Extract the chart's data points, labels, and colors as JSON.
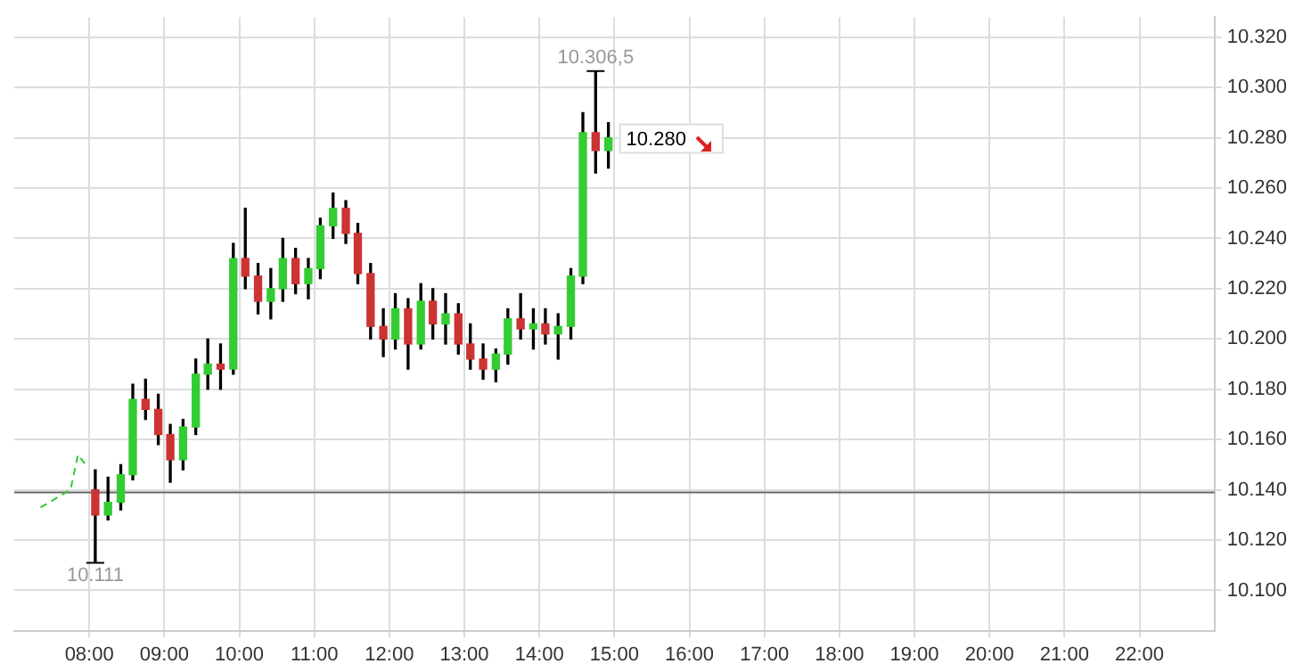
{
  "chart_data": {
    "type": "candlestick",
    "x": [
      8.08,
      8.25,
      8.42,
      8.58,
      8.75,
      8.92,
      9.08,
      9.25,
      9.42,
      9.58,
      9.75,
      9.92,
      10.08,
      10.25,
      10.42,
      10.58,
      10.75,
      10.92,
      11.08,
      11.25,
      11.42,
      11.58,
      11.75,
      11.92,
      12.08,
      12.25,
      12.42,
      12.58,
      12.75,
      12.92,
      13.08,
      13.25,
      13.42,
      13.58,
      13.75,
      13.92,
      14.08,
      14.25,
      14.42,
      14.58,
      14.75,
      14.92
    ],
    "ohlc": [
      [
        10140,
        10148,
        10111,
        10130
      ],
      [
        10130,
        10145,
        10128,
        10135
      ],
      [
        10135,
        10150,
        10132,
        10146
      ],
      [
        10146,
        10182,
        10144,
        10176
      ],
      [
        10176,
        10184,
        10168,
        10172
      ],
      [
        10172,
        10178,
        10158,
        10162
      ],
      [
        10162,
        10166,
        10143,
        10152
      ],
      [
        10152,
        10168,
        10148,
        10165
      ],
      [
        10165,
        10192,
        10162,
        10186
      ],
      [
        10186,
        10200,
        10180,
        10190
      ],
      [
        10190,
        10198,
        10180,
        10188
      ],
      [
        10188,
        10238,
        10186,
        10232
      ],
      [
        10232,
        10252,
        10220,
        10225
      ],
      [
        10225,
        10230,
        10210,
        10215
      ],
      [
        10215,
        10228,
        10208,
        10220
      ],
      [
        10220,
        10240,
        10215,
        10232
      ],
      [
        10232,
        10236,
        10218,
        10222
      ],
      [
        10222,
        10232,
        10216,
        10228
      ],
      [
        10228,
        10248,
        10224,
        10245
      ],
      [
        10245,
        10258,
        10240,
        10252
      ],
      [
        10252,
        10255,
        10238,
        10242
      ],
      [
        10242,
        10246,
        10222,
        10226
      ],
      [
        10226,
        10230,
        10200,
        10205
      ],
      [
        10205,
        10212,
        10193,
        10200
      ],
      [
        10200,
        10218,
        10196,
        10212
      ],
      [
        10212,
        10216,
        10188,
        10198
      ],
      [
        10198,
        10222,
        10196,
        10215
      ],
      [
        10215,
        10220,
        10200,
        10206
      ],
      [
        10206,
        10218,
        10198,
        10210
      ],
      [
        10210,
        10214,
        10194,
        10198
      ],
      [
        10198,
        10206,
        10188,
        10192
      ],
      [
        10192,
        10198,
        10184,
        10188
      ],
      [
        10188,
        10196,
        10183,
        10194
      ],
      [
        10194,
        10212,
        10190,
        10208
      ],
      [
        10208,
        10218,
        10200,
        10204
      ],
      [
        10204,
        10212,
        10196,
        10206
      ],
      [
        10206,
        10212,
        10198,
        10202
      ],
      [
        10202,
        10210,
        10192,
        10205
      ],
      [
        10205,
        10228,
        10200,
        10225
      ],
      [
        10225,
        10290,
        10222,
        10282
      ],
      [
        10282,
        10306.5,
        10266,
        10275
      ],
      [
        10275,
        10286,
        10268,
        10280
      ]
    ],
    "colors": [
      "#cc3333",
      "#33cc33",
      "#33cc33",
      "#33cc33",
      "#cc3333",
      "#cc3333",
      "#cc3333",
      "#33cc33",
      "#33cc33",
      "#33cc33",
      "#cc3333",
      "#33cc33",
      "#cc3333",
      "#cc3333",
      "#33cc33",
      "#33cc33",
      "#cc3333",
      "#33cc33",
      "#33cc33",
      "#33cc33",
      "#cc3333",
      "#cc3333",
      "#cc3333",
      "#cc3333",
      "#33cc33",
      "#cc3333",
      "#33cc33",
      "#cc3333",
      "#33cc33",
      "#cc3333",
      "#cc3333",
      "#cc3333",
      "#33cc33",
      "#33cc33",
      "#cc3333",
      "#33cc33",
      "#cc3333",
      "#33cc33",
      "#33cc33",
      "#33cc33",
      "#cc3333",
      "#33cc33"
    ],
    "series": [
      {
        "type": "line",
        "x": [
          7.35,
          7.75,
          7.85,
          7.95
        ],
        "values": [
          10133,
          10140,
          10154,
          10150
        ],
        "color": "#33cc33",
        "line_style": "dashed"
      }
    ],
    "xlim": [
      7,
      23
    ],
    "xticks": [
      {
        "value": 8,
        "label": "08:00"
      },
      {
        "value": 9,
        "label": "09:00"
      },
      {
        "value": 10,
        "label": "10:00"
      },
      {
        "value": 11,
        "label": "11:00"
      },
      {
        "value": 12,
        "label": "12:00"
      },
      {
        "value": 13,
        "label": "13:00"
      },
      {
        "value": 14,
        "label": "14:00"
      },
      {
        "value": 15,
        "label": "15:00"
      },
      {
        "value": 16,
        "label": "16:00"
      },
      {
        "value": 17,
        "label": "17:00"
      },
      {
        "value": 18,
        "label": "18:00"
      },
      {
        "value": 19,
        "label": "19:00"
      },
      {
        "value": 20,
        "label": "20:00"
      },
      {
        "value": 21,
        "label": "21:00"
      },
      {
        "value": 22,
        "label": "22:00"
      }
    ],
    "ylim": [
      10084,
      10328
    ],
    "yticks": [
      {
        "value": 10100,
        "label": "10.100"
      },
      {
        "value": 10120,
        "label": "10.120"
      },
      {
        "value": 10140,
        "label": "10.140"
      },
      {
        "value": 10160,
        "label": "10.160"
      },
      {
        "value": 10180,
        "label": "10.180"
      },
      {
        "value": 10200,
        "label": "10.200"
      },
      {
        "value": 10220,
        "label": "10.220"
      },
      {
        "value": 10240,
        "label": "10.240"
      },
      {
        "value": 10260,
        "label": "10.260"
      },
      {
        "value": 10280,
        "label": "10.280"
      },
      {
        "value": 10300,
        "label": "10.300"
      },
      {
        "value": 10320,
        "label": "10.320"
      }
    ],
    "ref_lines": [
      {
        "axis": "y",
        "value": 10139,
        "color": "#666666"
      }
    ],
    "annotations": [
      {
        "text": "10.306,5",
        "x": 14.75,
        "y": 10306.5
      },
      {
        "text": "10.111",
        "x": 8.08,
        "y": 10111
      },
      {
        "text": "10.280",
        "x": 14.92,
        "y": 10280
      }
    ],
    "grid": true,
    "legend": false
  }
}
